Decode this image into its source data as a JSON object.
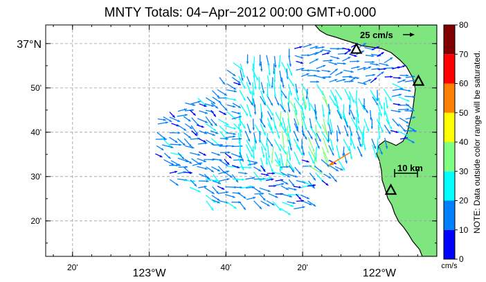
{
  "map": {
    "title": "MNTY Totals: 04−Apr−2012 00:00 GMT+0.000",
    "lat_labels": [
      {
        "id": "37n",
        "text": "37°N",
        "lat": 37.0
      },
      {
        "id": "50",
        "text": "50'",
        "lat": 36.8333
      },
      {
        "id": "40",
        "text": "40'",
        "lat": 36.6667
      },
      {
        "id": "30",
        "text": "30'",
        "lat": 36.5
      },
      {
        "id": "20",
        "text": "20'",
        "lat": 36.3333
      }
    ],
    "lon_labels": [
      {
        "id": "20a",
        "text": "20'",
        "lon": -123.3333
      },
      {
        "id": "123w",
        "text": "123°W",
        "lon": -123.0
      },
      {
        "id": "40",
        "text": "40'",
        "lon": -122.6667
      },
      {
        "id": "20b",
        "text": "20'",
        "lon": -122.3333
      },
      {
        "id": "122w",
        "text": "122°W",
        "lon": -122.0
      }
    ],
    "reference_arrow_label": "25 cm/s",
    "scale_bar_label": "10 km",
    "extent": {
      "lon_min": -123.45,
      "lon_max": -121.75,
      "lat_min": 36.2,
      "lat_max": 37.07
    },
    "stations": [
      {
        "id": "station-1",
        "lon": -122.1,
        "lat": 36.98
      },
      {
        "id": "station-2",
        "lon": -121.83,
        "lat": 36.86
      },
      {
        "id": "station-3",
        "lon": -121.95,
        "lat": 36.45
      }
    ]
  },
  "colorbar": {
    "ticks": [
      "0",
      "10",
      "20",
      "30",
      "40",
      "50",
      "60",
      "70",
      "80"
    ],
    "unit": "cm/s",
    "note": "NOTE: Data outside color range will be saturated.",
    "colors": [
      "#0000ff",
      "#0080ff",
      "#00ffff",
      "#80ff80",
      "#ffff00",
      "#ff8000",
      "#ff0000",
      "#800000"
    ]
  },
  "colors": {
    "land": "#7fe57f",
    "coast": "#000000",
    "grid": "#9a9a9a",
    "arrows": {
      "speed_0_10": "#0000ff",
      "speed_10_20": "#0080ff",
      "speed_20_30": "#00ffff",
      "speed_30_40": "#80ff80",
      "speed_40_50": "#ffff00",
      "speed_50_60": "#ff8000"
    }
  }
}
